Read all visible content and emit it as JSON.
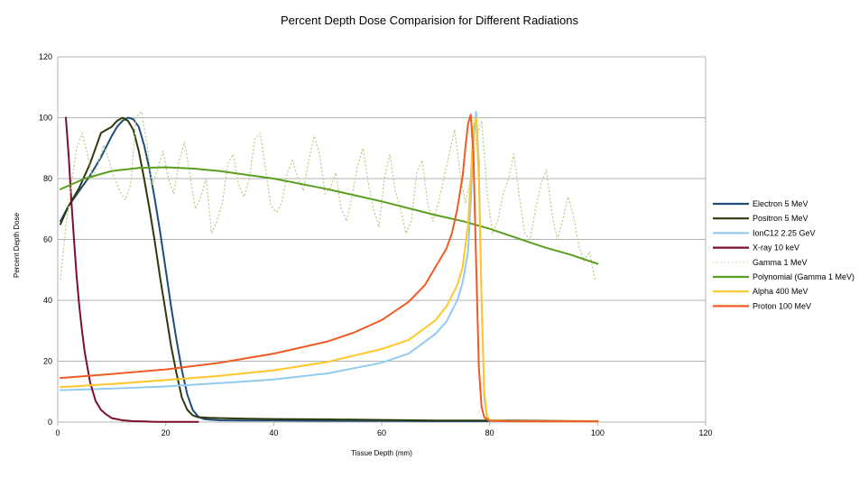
{
  "chart_data": {
    "type": "line",
    "title": "Percent Depth Dose Comparision for Different Radiations",
    "xlabel": "Tissue Depth (mm)",
    "ylabel": "Percent Depth Dose",
    "xlim": [
      0,
      120
    ],
    "ylim": [
      0,
      120
    ],
    "xticks": [
      0,
      20,
      40,
      60,
      80,
      100,
      120
    ],
    "yticks": [
      0,
      20,
      40,
      60,
      80,
      100,
      120
    ],
    "grid": "horizontal",
    "legend_position": "right",
    "series": [
      {
        "name": "Electron 5 MeV",
        "color": "#1f4e79",
        "style": "solid",
        "x": [
          0.5,
          2,
          4,
          6,
          8,
          10,
          11,
          12,
          13,
          14,
          15,
          16,
          17,
          18,
          19,
          20,
          21,
          22,
          23,
          24,
          25,
          26,
          27,
          28,
          30,
          35,
          40,
          50,
          60,
          70,
          80,
          90,
          100
        ],
        "y": [
          66,
          71,
          76,
          81,
          87,
          94,
          97,
          99,
          100,
          99.5,
          97,
          91,
          83,
          73,
          62,
          50,
          38,
          27,
          17,
          9,
          4,
          1.8,
          1,
          0.8,
          0.6,
          0.5,
          0.5,
          0.4,
          0.4,
          0.3,
          0.3,
          0.3,
          0.2
        ]
      },
      {
        "name": "Positron 5 MeV",
        "color": "#2d3a0c",
        "style": "solid",
        "x": [
          0.5,
          2,
          4,
          6,
          7,
          8,
          9,
          10,
          11,
          12,
          13,
          14,
          15,
          16,
          17,
          18,
          19,
          20,
          21,
          22,
          23,
          24,
          25,
          26,
          27,
          28,
          30,
          35,
          40,
          50,
          60,
          70,
          80,
          90,
          100
        ],
        "y": [
          65,
          71,
          77,
          85,
          90,
          95,
          96,
          97,
          99,
          100,
          99,
          96,
          89,
          80,
          70,
          59,
          47,
          36,
          25,
          16,
          8,
          4,
          2.2,
          1.6,
          1.5,
          1.4,
          1.3,
          1.1,
          1,
          0.9,
          0.7,
          0.5,
          0.5,
          0.4,
          0.3
        ]
      },
      {
        "name": "IonC12 2.25 GeV",
        "color": "#92cbee",
        "style": "solid",
        "x": [
          0.5,
          10,
          20,
          30,
          40,
          50,
          60,
          65,
          70,
          72,
          74,
          75,
          76,
          76.5,
          77,
          77.5,
          78,
          78.5,
          79,
          79.5,
          80,
          85,
          90,
          100
        ],
        "y": [
          10.5,
          11,
          11.7,
          12.8,
          14,
          16,
          19.5,
          22.5,
          29,
          33,
          40,
          46,
          56,
          72,
          92,
          102,
          85,
          40,
          8,
          1,
          0.3,
          0.2,
          0.2,
          0.2
        ]
      },
      {
        "name": "X-ray 10 keV",
        "color": "#7b0f2a",
        "style": "solid",
        "x": [
          1.5,
          2,
          2.5,
          3,
          3.5,
          4,
          4.5,
          5,
          6,
          7,
          8,
          9,
          10,
          12,
          14,
          16,
          18,
          20,
          22,
          26
        ],
        "y": [
          100,
          88,
          73,
          60,
          48,
          38,
          30,
          23,
          13,
          7,
          4,
          2.5,
          1.3,
          0.6,
          0.3,
          0.2,
          0.1,
          0.1,
          0.1,
          0.1
        ]
      },
      {
        "name": "Gamma 1 MeV",
        "color": "#b8cf8a",
        "style": "dotted",
        "x": [
          0.5,
          1.5,
          2.5,
          3.5,
          4.5,
          5.5,
          6.5,
          7.5,
          8.5,
          9.5,
          10.5,
          11.5,
          12.5,
          13.5,
          14.5,
          15.5,
          16.5,
          17.5,
          18.5,
          19.5,
          20.5,
          21.5,
          22.5,
          23.5,
          24.5,
          25.5,
          26.5,
          27.5,
          28.5,
          29.5,
          30.5,
          31.5,
          32.5,
          33.5,
          34.5,
          35.5,
          36.5,
          37.5,
          38.5,
          39.5,
          40.5,
          41.5,
          42.5,
          43.5,
          44.5,
          45.5,
          46.5,
          47.5,
          48.5,
          49.5,
          50.5,
          51.5,
          52.5,
          53.5,
          54.5,
          55.5,
          56.5,
          57.5,
          58.5,
          59.5,
          60.5,
          61.5,
          62.5,
          63.5,
          64.5,
          65.5,
          66.5,
          67.5,
          68.5,
          69.5,
          70.5,
          71.5,
          72.5,
          73.5,
          74.5,
          75.5,
          76.5,
          77.5,
          78.5,
          79.5,
          80.5,
          81.5,
          82.5,
          83.5,
          84.5,
          85.5,
          86.5,
          87.5,
          88.5,
          89.5,
          90.5,
          91.5,
          92.5,
          93.5,
          94.5,
          95.5,
          96.5,
          97.5,
          98.5,
          99.5
        ],
        "y": [
          47,
          64,
          78,
          90,
          95,
          88,
          80,
          85,
          91,
          86,
          80,
          76,
          73,
          78,
          100,
          102,
          92,
          78,
          83,
          89,
          80,
          75,
          86,
          92,
          81,
          70,
          74,
          80,
          62,
          66,
          72,
          85,
          88,
          78,
          74,
          80,
          93,
          95,
          83,
          71,
          69,
          72,
          82,
          86,
          80,
          76,
          86,
          94,
          88,
          75,
          77,
          82,
          70,
          66,
          74,
          84,
          90,
          79,
          70,
          64,
          80,
          88,
          76,
          70,
          62,
          66,
          82,
          86,
          72,
          66,
          72,
          80,
          88,
          96,
          82,
          72,
          80,
          93,
          99,
          76,
          62,
          66,
          75,
          80,
          88,
          74,
          62,
          60,
          70,
          78,
          83,
          69,
          60,
          66,
          74,
          68,
          58,
          53,
          56,
          47
        ]
      },
      {
        "name": "Polynomial (Gamma 1 MeV)",
        "color": "#5c9e1f",
        "style": "solid",
        "x": [
          0.5,
          5,
          10,
          15,
          20,
          25,
          30,
          40,
          50,
          60,
          70,
          75,
          80,
          85,
          90,
          95,
          100
        ],
        "y": [
          76.5,
          80,
          82.5,
          83.5,
          83.7,
          83.3,
          82.5,
          80,
          76.5,
          72.5,
          68,
          66,
          63.5,
          60.5,
          57.5,
          55,
          52
        ]
      },
      {
        "name": "Alpha 400 MeV",
        "color": "#ffc72a",
        "style": "solid",
        "x": [
          0.5,
          10,
          20,
          30,
          40,
          50,
          60,
          65,
          70,
          72,
          74,
          75,
          76,
          76.5,
          77,
          77.5,
          78,
          78.5,
          79,
          79.5,
          80,
          85,
          90,
          100
        ],
        "y": [
          11.5,
          12.5,
          13.8,
          15.2,
          17,
          19.8,
          24,
          27,
          33.5,
          38,
          45,
          51,
          65,
          80,
          97,
          100,
          80,
          40,
          10,
          2,
          0.5,
          0.2,
          0.2,
          0.2
        ]
      },
      {
        "name": "Proton 100 MeV",
        "color": "#f05a23",
        "style": "solid",
        "x": [
          0.5,
          10,
          20,
          30,
          40,
          50,
          55,
          60,
          65,
          68,
          70,
          72,
          73,
          74,
          75,
          75.5,
          76,
          76.5,
          77,
          77.5,
          78,
          78.5,
          79,
          80,
          85,
          90,
          100
        ],
        "y": [
          14.5,
          15.8,
          17.3,
          19.5,
          22.5,
          26.5,
          29.5,
          33.5,
          39.5,
          45,
          51,
          57,
          62,
          70,
          81,
          90,
          98,
          101,
          88,
          52,
          18,
          5,
          1.5,
          0.4,
          0.2,
          0.2,
          0.2
        ]
      }
    ]
  }
}
